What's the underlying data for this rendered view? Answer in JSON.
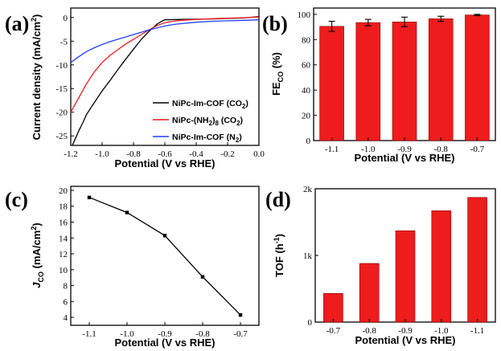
{
  "panel_labels": [
    "(a)",
    "(b)",
    "(c)",
    "(d)"
  ],
  "chart_data": [
    {
      "panel": "(a)",
      "type": "line",
      "xlabel": "Potential (V vs RHE)",
      "ylabel": "Current density (mA/cm2)",
      "xlim": [
        -1.2,
        0.0
      ],
      "ylim": [
        -27,
        2
      ],
      "xticks": [
        "-1.2",
        "-1.0",
        "-0.8",
        "-0.6",
        "-0.4",
        "-0.2",
        "0.0"
      ],
      "yticks": [
        "-25",
        "-20",
        "-15",
        "-10",
        "-5",
        "0"
      ],
      "legend_position": "bottom-right",
      "series": [
        {
          "name": "NiPc-Im-COF (CO2)",
          "color": "#000000",
          "x": [
            -1.19,
            -1.17,
            -1.15,
            -1.12,
            -1.1,
            -1.05,
            -1.0,
            -0.95,
            -0.9,
            -0.85,
            -0.8,
            -0.75,
            -0.7,
            -0.65,
            -0.62,
            -0.6,
            -0.55,
            -0.5,
            -0.4,
            -0.3,
            -0.2,
            -0.1,
            0.0
          ],
          "y": [
            -27.5,
            -25.5,
            -24.0,
            -22.0,
            -20.5,
            -18.0,
            -15.5,
            -13.3,
            -11.0,
            -8.8,
            -6.7,
            -4.6,
            -2.9,
            -1.4,
            -0.8,
            -0.5,
            -0.45,
            -0.4,
            -0.35,
            -0.3,
            -0.2,
            -0.1,
            0.2
          ]
        },
        {
          "name": "NiPc-(NH2)8 (CO2)",
          "color": "#ee1c1c",
          "x": [
            -1.2,
            -1.15,
            -1.1,
            -1.05,
            -1.0,
            -0.95,
            -0.9,
            -0.85,
            -0.8,
            -0.75,
            -0.7,
            -0.65,
            -0.6,
            -0.55,
            -0.5,
            -0.4,
            -0.3,
            -0.2,
            -0.1,
            0.0
          ],
          "y": [
            -20.0,
            -17.0,
            -14.0,
            -11.5,
            -9.5,
            -8.0,
            -6.8,
            -5.6,
            -4.6,
            -3.6,
            -2.6,
            -1.7,
            -1.1,
            -0.8,
            -0.6,
            -0.4,
            -0.25,
            -0.15,
            -0.05,
            0.1
          ]
        },
        {
          "name": "NiPc-Im-COF (N2)",
          "color": "#1f3fff",
          "x": [
            -1.2,
            -1.15,
            -1.1,
            -1.05,
            -1.0,
            -0.95,
            -0.9,
            -0.85,
            -0.8,
            -0.75,
            -0.7,
            -0.65,
            -0.6,
            -0.55,
            -0.5,
            -0.4,
            -0.3,
            -0.2,
            -0.1,
            0.0
          ],
          "y": [
            -9.5,
            -8.3,
            -7.2,
            -6.4,
            -5.7,
            -5.1,
            -4.6,
            -4.1,
            -3.6,
            -3.1,
            -2.6,
            -2.2,
            -1.8,
            -1.5,
            -1.3,
            -1.0,
            -0.8,
            -0.7,
            -0.6,
            -0.5
          ]
        }
      ]
    },
    {
      "panel": "(b)",
      "type": "bar",
      "xlabel": "Potential (V vs RHE)",
      "ylabel": "FE",
      "ylabel_sub": "CO",
      "ylabel_unit": " (%)",
      "ylim": [
        0,
        105
      ],
      "yticks": [
        "0",
        "20",
        "40",
        "60",
        "80",
        "100"
      ],
      "categories": [
        "-1.1",
        "-1.0",
        "-0.9",
        "-0.8",
        "-0.7"
      ],
      "values": [
        90.5,
        93.5,
        94.0,
        96.5,
        99.5
      ],
      "errors": [
        4.0,
        2.5,
        3.8,
        2.0,
        0.5
      ]
    },
    {
      "panel": "(c)",
      "type": "line",
      "xlabel": "Potential (V vs RHE)",
      "ylabel": "J",
      "ylabel_sub": "CO",
      "ylabel_unit": " (mA/cm2)",
      "ylim": [
        3,
        20.5
      ],
      "yticks": [
        "4",
        "6",
        "8",
        "10",
        "12",
        "14",
        "16",
        "18",
        "20"
      ],
      "categories": [
        "-1.1",
        "-1.0",
        "-0.9",
        "-0.8",
        "-0.7"
      ],
      "values": [
        19.1,
        17.2,
        14.3,
        9.1,
        4.3
      ]
    },
    {
      "panel": "(d)",
      "type": "bar",
      "xlabel": "Potential (V vs RHE)",
      "ylabel": "TOF (h-1)",
      "ylim": [
        0,
        2000
      ],
      "yticks": [
        "0",
        "1k",
        "2k"
      ],
      "categories": [
        "-0.7",
        "-0.8",
        "-0.9",
        "-1.0",
        "-1.1"
      ],
      "values": [
        430,
        880,
        1370,
        1670,
        1870
      ]
    }
  ]
}
